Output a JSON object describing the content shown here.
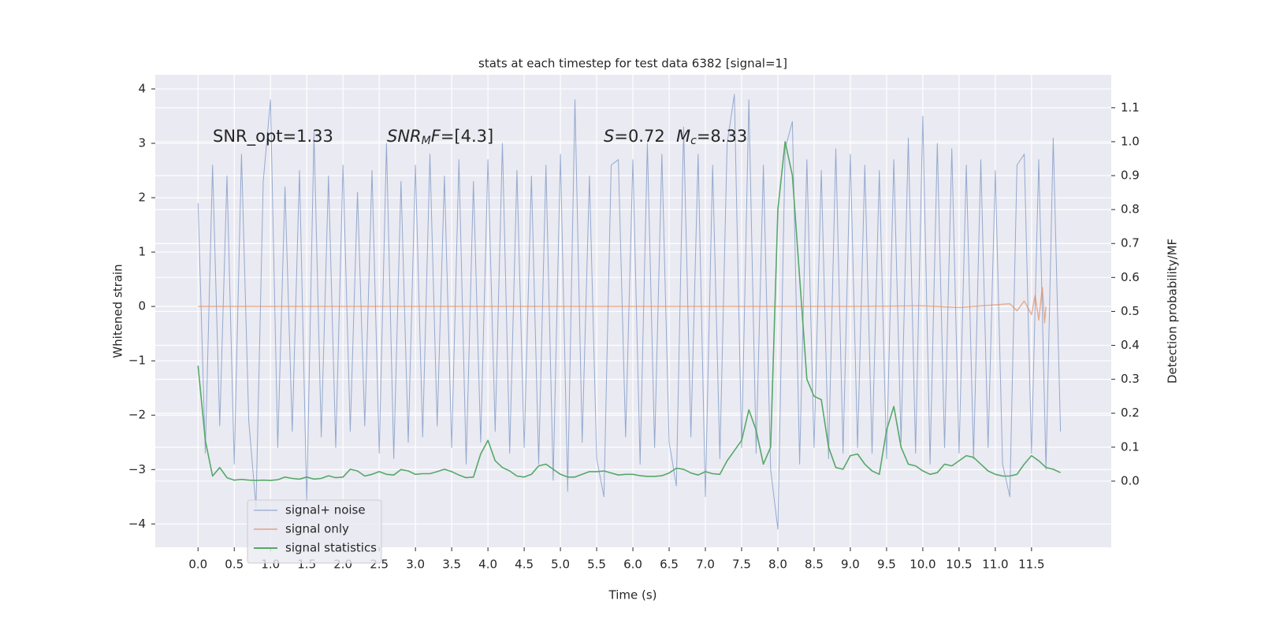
{
  "chart_data": {
    "type": "line",
    "title": "stats at each timestep for test data 6382 [signal=1]",
    "xlabel": "Time (s)",
    "ylabel": "Whitened strain",
    "y2label": "Detection probability/MF",
    "xlim": [
      -0.59,
      12.6
    ],
    "ylim": [
      -4.43,
      4.26
    ],
    "y2lim": [
      -0.195,
      1.197
    ],
    "xticks": [
      {
        "value": 0,
        "label": "0.0"
      },
      0.5,
      {
        "value": 1,
        "label": "1.0"
      },
      1.5,
      {
        "value": 2,
        "label": "2.0"
      },
      2.5,
      {
        "value": 3,
        "label": "3.0"
      },
      3.5,
      {
        "value": 4,
        "label": "4.0"
      },
      4.5,
      {
        "value": 5,
        "label": "5.0"
      },
      5.5,
      {
        "value": 6,
        "label": "6.0"
      },
      6.5,
      {
        "value": 7,
        "label": "7.0"
      },
      7.5,
      {
        "value": 8,
        "label": "8.0"
      },
      8.5,
      {
        "value": 9,
        "label": "9.0"
      },
      9.5,
      {
        "value": 10,
        "label": "10.0"
      },
      10.5,
      {
        "value": 11,
        "label": "11.0"
      },
      11.5
    ],
    "yticks": [
      {
        "value": -4,
        "label": "−4"
      },
      {
        "value": -3,
        "label": "−3"
      },
      {
        "value": -2,
        "label": "−2"
      },
      {
        "value": -1,
        "label": "−1"
      },
      0,
      1,
      2,
      3,
      4
    ],
    "y2ticks": [
      {
        "value": 0,
        "label": "0.0"
      },
      0.1,
      0.2,
      0.3,
      0.4,
      0.5,
      0.6,
      0.7,
      0.8,
      0.9,
      {
        "value": 1,
        "label": "1.0"
      },
      1.1
    ],
    "grid": true,
    "legend_loc": "lower left",
    "annotations": [
      {
        "parts": [
          {
            "t": "SNR_opt=1.33"
          }
        ]
      },
      {
        "parts": [
          {
            "t": "SNR",
            "italic": true
          },
          {
            "t": "M",
            "italic": true,
            "sub": true
          },
          {
            "t": "F",
            "italic": true
          },
          {
            "t": "=[4.3]"
          }
        ]
      },
      {
        "parts": [
          {
            "t": "S",
            "italic": true
          },
          {
            "t": "=0.72"
          }
        ]
      },
      {
        "parts": [
          {
            "t": "M",
            "italic": true
          },
          {
            "t": "c",
            "italic": true,
            "sub": true
          },
          {
            "t": "=8.33"
          }
        ]
      }
    ],
    "x": [
      0,
      0.1,
      0.2,
      0.3,
      0.4,
      0.5,
      0.6,
      0.7,
      0.8,
      0.9,
      1,
      1.1,
      1.2,
      1.3,
      1.4,
      1.5,
      1.6,
      1.7,
      1.8,
      1.9,
      2,
      2.1,
      2.2,
      2.3,
      2.4,
      2.5,
      2.6,
      2.7,
      2.8,
      2.9,
      3,
      3.1,
      3.2,
      3.3,
      3.4,
      3.5,
      3.6,
      3.7,
      3.8,
      3.9,
      4,
      4.1,
      4.2,
      4.3,
      4.4,
      4.5,
      4.6,
      4.7,
      4.8,
      4.9,
      5,
      5.1,
      5.2,
      5.3,
      5.4,
      5.5,
      5.6,
      5.7,
      5.8,
      5.9,
      6,
      6.1,
      6.2,
      6.3,
      6.4,
      6.5,
      6.6,
      6.7,
      6.8,
      6.9,
      7,
      7.1,
      7.2,
      7.3,
      7.4,
      7.5,
      7.6,
      7.7,
      7.8,
      7.9,
      8,
      8.1,
      8.2,
      8.3,
      8.4,
      8.5,
      8.6,
      8.7,
      8.8,
      8.9,
      9,
      9.1,
      9.2,
      9.3,
      9.4,
      9.5,
      9.6,
      9.7,
      9.8,
      9.9,
      10,
      10.1,
      10.2,
      10.3,
      10.4,
      10.5,
      10.6,
      10.7,
      10.8,
      10.9,
      11,
      11.1,
      11.2,
      11.3,
      11.4,
      11.5,
      11.6,
      11.7,
      11.8,
      11.9
    ],
    "series": [
      {
        "name": "signal+ noise",
        "color": "#4c72b0",
        "values": [
          1.9,
          -2.7,
          2.6,
          -2.2,
          2.4,
          -2.9,
          2.8,
          -2.1,
          -3.7,
          2.3,
          3.8,
          -2.6,
          2.2,
          -2.3,
          2.5,
          -3.6,
          3.2,
          -2.4,
          2.4,
          -2.6,
          2.6,
          -2.3,
          2.1,
          -2.2,
          2.5,
          -2.7,
          3.0,
          -2.8,
          2.3,
          -2.5,
          2.6,
          -2.4,
          2.8,
          -2.2,
          2.4,
          -2.6,
          2.7,
          -2.9,
          2.3,
          -2.5,
          2.7,
          -2.3,
          3.0,
          -2.7,
          2.5,
          -2.6,
          2.4,
          -2.9,
          2.6,
          -3.2,
          2.8,
          -3.4,
          3.8,
          -2.5,
          2.4,
          -2.8,
          -3.5,
          2.6,
          2.7,
          -2.4,
          2.7,
          -2.9,
          3.0,
          -2.6,
          2.8,
          -2.5,
          -3.3,
          3.3,
          -2.4,
          2.8,
          -3.5,
          2.6,
          -2.8,
          3.0,
          3.9,
          -2.6,
          3.8,
          -2.7,
          2.6,
          -3.0,
          -4.1,
          2.9,
          3.4,
          -2.9,
          2.7,
          -2.6,
          2.5,
          -2.8,
          2.9,
          -2.7,
          2.8,
          -2.6,
          2.6,
          -2.7,
          2.5,
          -2.8,
          2.7,
          -2.5,
          3.1,
          -2.7,
          3.5,
          -2.9,
          3.0,
          -2.6,
          2.9,
          -2.7,
          2.6,
          -2.8,
          2.7,
          -2.6,
          2.5,
          -2.9,
          -3.5,
          2.6,
          2.8,
          -2.7,
          2.7,
          -3.0,
          3.1,
          -2.3
        ]
      },
      {
        "name": "signal only",
        "color": "#dd8452",
        "x": [
          0,
          1,
          2,
          3,
          4,
          5,
          6,
          7,
          8,
          9,
          10,
          10.5,
          11,
          11.2,
          11.3,
          11.4,
          11.5,
          11.55,
          11.6,
          11.65,
          11.68,
          11.7
        ],
        "values": [
          0,
          0,
          0,
          0,
          0,
          0,
          0,
          0,
          0,
          0,
          0.01,
          -0.02,
          0.03,
          0.05,
          -0.08,
          0.1,
          -0.15,
          0.2,
          -0.25,
          0.35,
          -0.3,
          0
        ]
      },
      {
        "name": "signal statistics",
        "color": "#55a868",
        "axis": "y2",
        "values": [
          0.34,
          0.12,
          0.015,
          0.04,
          0.01,
          0.003,
          0.005,
          0.003,
          0.002,
          0.003,
          0.002,
          0.004,
          0.012,
          0.008,
          0.006,
          0.012,
          0.006,
          0.008,
          0.016,
          0.01,
          0.012,
          0.035,
          0.03,
          0.015,
          0.02,
          0.028,
          0.02,
          0.018,
          0.034,
          0.03,
          0.02,
          0.022,
          0.022,
          0.028,
          0.035,
          0.028,
          0.018,
          0.01,
          0.012,
          0.08,
          0.12,
          0.06,
          0.04,
          0.03,
          0.015,
          0.012,
          0.02,
          0.045,
          0.05,
          0.035,
          0.02,
          0.012,
          0.012,
          0.02,
          0.028,
          0.028,
          0.03,
          0.024,
          0.018,
          0.02,
          0.02,
          0.016,
          0.014,
          0.014,
          0.016,
          0.024,
          0.038,
          0.035,
          0.024,
          0.018,
          0.028,
          0.022,
          0.02,
          0.06,
          0.09,
          0.12,
          0.21,
          0.15,
          0.05,
          0.1,
          0.8,
          1.0,
          0.9,
          0.6,
          0.3,
          0.25,
          0.24,
          0.1,
          0.04,
          0.035,
          0.075,
          0.08,
          0.05,
          0.03,
          0.02,
          0.15,
          0.22,
          0.1,
          0.05,
          0.045,
          0.03,
          0.02,
          0.025,
          0.05,
          0.045,
          0.06,
          0.075,
          0.07,
          0.05,
          0.03,
          0.02,
          0.015,
          0.015,
          0.02,
          0.05,
          0.075,
          0.06,
          0.04,
          0.035,
          0.025
        ]
      }
    ]
  }
}
